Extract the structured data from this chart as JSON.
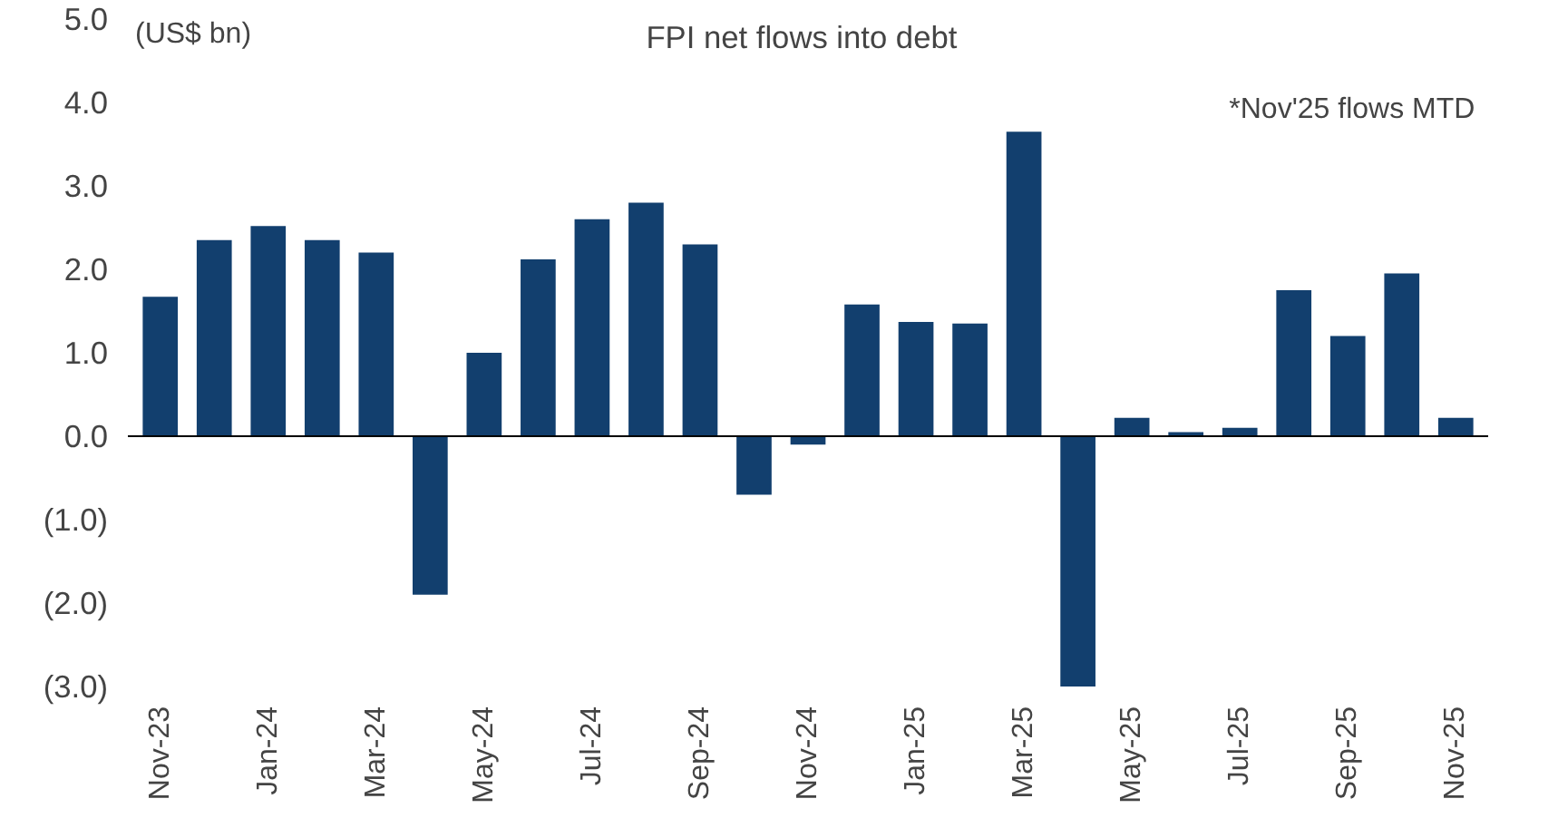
{
  "chart_data": {
    "type": "bar",
    "title": "FPI net flows into debt",
    "ylabel": "(US$ bn)",
    "annotations": [
      "*Nov'25 flows MTD"
    ],
    "categories": [
      "Nov-23",
      null,
      "Jan-24",
      null,
      "Mar-24",
      null,
      "May-24",
      null,
      "Jul-24",
      null,
      "Sep-24",
      null,
      "Nov-24",
      null,
      "Jan-25",
      null,
      "Mar-25",
      null,
      "May-25",
      null,
      "Jul-25",
      null,
      "Sep-25",
      null,
      "Nov-25"
    ],
    "values": [
      1.67,
      2.35,
      2.52,
      2.35,
      2.2,
      -1.9,
      1.0,
      2.12,
      2.6,
      2.8,
      2.3,
      -0.7,
      -0.1,
      1.58,
      1.37,
      1.35,
      3.65,
      -3.0,
      0.22,
      0.05,
      0.1,
      1.75,
      1.2,
      1.95,
      0.22
    ],
    "color": "#123f6e",
    "ylim": [
      -3,
      5
    ],
    "yticks": [
      {
        "value": -3,
        "label": "(3.0)"
      },
      {
        "value": -2,
        "label": "(2.0)"
      },
      {
        "value": -1,
        "label": "(1.0)"
      },
      {
        "value": 0,
        "label": "0.0"
      },
      {
        "value": 1,
        "label": "1.0"
      },
      {
        "value": 2,
        "label": "2.0"
      },
      {
        "value": 3,
        "label": "3.0"
      },
      {
        "value": 4,
        "label": "4.0"
      },
      {
        "value": 5,
        "label": "5.0"
      }
    ]
  }
}
